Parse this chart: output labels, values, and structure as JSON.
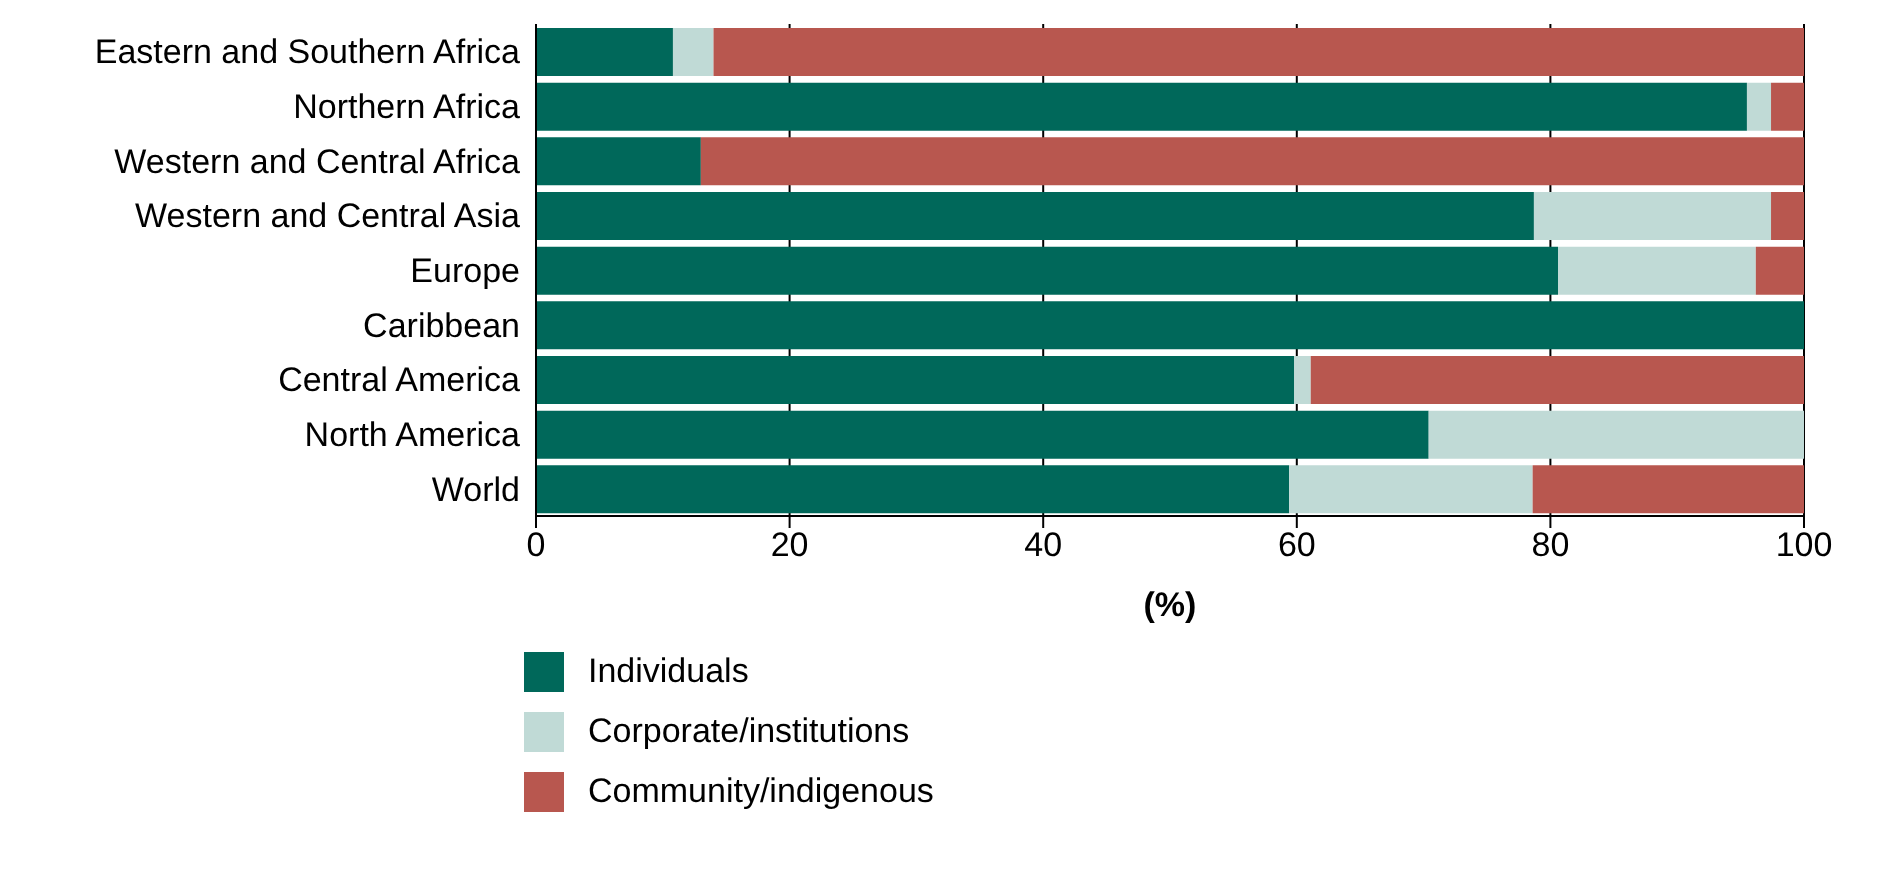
{
  "chart_data": {
    "type": "bar",
    "orientation": "horizontal",
    "stacked": true,
    "xlabel": "(%)",
    "categories": [
      "Eastern and Southern Africa",
      "Northern Africa",
      "Western and Central Africa",
      "Western and Central Asia",
      "Europe",
      "Caribbean",
      "Central America",
      "North America",
      "World"
    ],
    "series": [
      {
        "name": "Individuals",
        "color": "#00685a",
        "values": [
          10.8,
          95.5,
          13.0,
          78.7,
          80.6,
          100,
          59.8,
          70.4,
          59.4
        ]
      },
      {
        "name": "Corporate/institutions",
        "color": "#c0dad6",
        "values": [
          3.2,
          1.9,
          0,
          18.7,
          15.6,
          0,
          1.3,
          29.6,
          19.2
        ]
      },
      {
        "name": "Community/indigenous",
        "color": "#b8574f",
        "values": [
          86.0,
          2.6,
          87.0,
          2.6,
          3.8,
          0,
          38.9,
          0,
          21.4
        ]
      }
    ],
    "xlim": [
      0,
      100
    ],
    "xticks": [
      0,
      20,
      40,
      60,
      80,
      100
    ],
    "grid": "x",
    "legend": "bottom left"
  }
}
